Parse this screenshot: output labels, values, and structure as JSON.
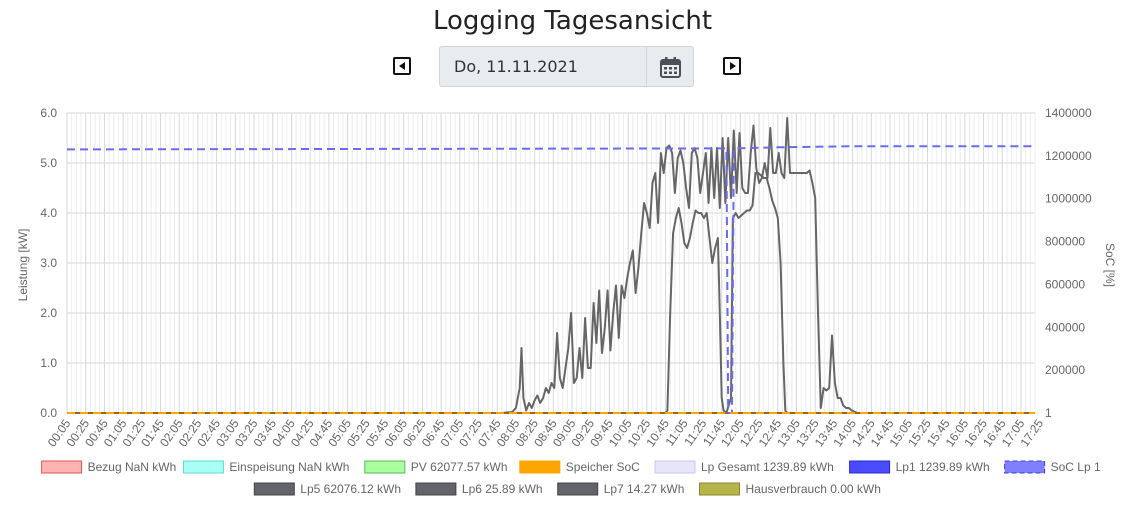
{
  "page": {
    "title": "Logging Tagesansicht",
    "date_value": "Do, 11.11.2021"
  },
  "icons": {
    "prev": "caret-left-square-icon",
    "next": "caret-right-square-icon",
    "calendar": "calendar-icon"
  },
  "chart_data": {
    "type": "line",
    "ylabel_left": "Leistung [kW]",
    "ylabel_right": "SoC [%]",
    "y_left_ticks": [
      "0.0",
      "1.0",
      "2.0",
      "3.0",
      "4.0",
      "5.0",
      "6.0"
    ],
    "y_left_range": [
      0,
      6
    ],
    "y_right_ticks": [
      "1",
      "200000",
      "400000",
      "600000",
      "800000",
      "1000000",
      "1200000",
      "1400000"
    ],
    "y_right_range": [
      1,
      1400000
    ],
    "x_tick_labels": [
      "00:05",
      "00:25",
      "00:45",
      "01:05",
      "01:25",
      "01:45",
      "02:05",
      "02:25",
      "02:45",
      "03:05",
      "03:25",
      "03:45",
      "04:05",
      "04:25",
      "04:45",
      "05:05",
      "05:25",
      "05:45",
      "06:05",
      "06:25",
      "06:45",
      "07:05",
      "07:25",
      "07:45",
      "08:05",
      "08:25",
      "08:45",
      "09:05",
      "09:25",
      "09:45",
      "10:05",
      "10:25",
      "10:45",
      "11:05",
      "11:25",
      "11:45",
      "12:05",
      "12:25",
      "12:45",
      "13:05",
      "13:25",
      "13:45",
      "14:05",
      "14:25",
      "14:45",
      "15:05",
      "15:25",
      "15:45",
      "16:05",
      "16:25",
      "16:45",
      "17:05",
      "17:25"
    ],
    "grid": true,
    "legend_position": "bottom",
    "legend": [
      {
        "label": "Bezug NaN kWh",
        "color": "#ffb3b3",
        "border": "#e05555",
        "dashed": false
      },
      {
        "label": "Einspeisung NaN kWh",
        "color": "#a8fff5",
        "border": "#66d9cc",
        "dashed": false
      },
      {
        "label": "PV 62077.57 kWh",
        "color": "#aaff9e",
        "border": "#55bb55",
        "dashed": false
      },
      {
        "label": "Speicher SoC",
        "color": "#ffa500",
        "border": "#ffa500",
        "dashed": false
      },
      {
        "label": "Lp Gesamt 1239.89 kWh",
        "color": "#e6e6f8",
        "border": "#c8c8ee",
        "dashed": false
      },
      {
        "label": "Lp1 1239.89 kWh",
        "color": "#4a4aff",
        "border": "#2a2ad0",
        "dashed": false
      },
      {
        "label": "SoC Lp 1",
        "color": "#8080ff",
        "border": "#4040cc",
        "dashed": true
      },
      {
        "label": "Lp5 62076.12 kWh",
        "color": "#63636a",
        "border": "#444",
        "dashed": false
      },
      {
        "label": "Lp6 25.89 kWh",
        "color": "#63636a",
        "border": "#444",
        "dashed": false
      },
      {
        "label": "Lp7 14.27 kWh",
        "color": "#63636a",
        "border": "#444",
        "dashed": false
      },
      {
        "label": "Hausverbrauch 0.00 kWh",
        "color": "#b5b34a",
        "border": "#8a8830",
        "dashed": false
      }
    ],
    "series": [
      {
        "name": "Lp5 62076.12 kWh",
        "axis": "left",
        "color": "#666666",
        "points": [
          [
            0,
            0
          ],
          [
            465,
            0
          ],
          [
            476,
            0.02
          ],
          [
            480,
            0.1
          ],
          [
            484,
            0.5
          ],
          [
            486,
            1.3
          ],
          [
            488,
            0.3
          ],
          [
            491,
            0.05
          ],
          [
            494,
            0.2
          ],
          [
            497,
            0.1
          ],
          [
            500,
            0.25
          ],
          [
            503,
            0.35
          ],
          [
            506,
            0.2
          ],
          [
            509,
            0.3
          ],
          [
            512,
            0.5
          ],
          [
            515,
            0.4
          ],
          [
            518,
            0.6
          ],
          [
            521,
            0.5
          ],
          [
            524,
            1.6
          ],
          [
            527,
            0.7
          ],
          [
            530,
            0.5
          ],
          [
            533,
            0.9
          ],
          [
            536,
            1.3
          ],
          [
            539,
            2.0
          ],
          [
            542,
            0.6
          ],
          [
            545,
            0.7
          ],
          [
            548,
            1.3
          ],
          [
            551,
            0.7
          ],
          [
            554,
            1.9
          ],
          [
            557,
            0.9
          ],
          [
            560,
            0.9
          ],
          [
            563,
            2.2
          ],
          [
            566,
            1.4
          ],
          [
            569,
            2.45
          ],
          [
            572,
            1.2
          ],
          [
            575,
            1.7
          ],
          [
            578,
            2.45
          ],
          [
            581,
            1.25
          ],
          [
            584,
            2.0
          ],
          [
            587,
            2.55
          ],
          [
            590,
            1.5
          ],
          [
            593,
            2.55
          ],
          [
            596,
            2.3
          ],
          [
            599,
            2.7
          ],
          [
            602,
            3.0
          ],
          [
            605,
            3.25
          ],
          [
            608,
            2.4
          ],
          [
            611,
            2.9
          ],
          [
            614,
            3.6
          ],
          [
            617,
            4.2
          ],
          [
            620,
            4.0
          ],
          [
            623,
            3.7
          ],
          [
            626,
            4.6
          ],
          [
            629,
            4.8
          ],
          [
            632,
            3.8
          ],
          [
            635,
            5.2
          ],
          [
            638,
            4.8
          ],
          [
            641,
            5.3
          ],
          [
            644,
            5.35
          ],
          [
            647,
            5.2
          ],
          [
            650,
            4.4
          ],
          [
            653,
            5.1
          ],
          [
            656,
            5.25
          ],
          [
            659,
            5.0
          ],
          [
            662,
            4.5
          ],
          [
            665,
            4.1
          ],
          [
            668,
            5.2
          ],
          [
            671,
            5.3
          ],
          [
            674,
            5.1
          ],
          [
            677,
            4.4
          ],
          [
            680,
            4.8
          ],
          [
            683,
            5.2
          ],
          [
            686,
            4.2
          ],
          [
            689,
            5.3
          ],
          [
            692,
            4.3
          ],
          [
            695,
            5.3
          ],
          [
            698,
            4.1
          ],
          [
            701,
            5.5
          ],
          [
            704,
            4.2
          ],
          [
            707,
            5.5
          ],
          [
            710,
            4.3
          ],
          [
            713,
            5.65
          ],
          [
            716,
            4.4
          ],
          [
            719,
            5.6
          ],
          [
            722,
            4.5
          ],
          [
            725,
            4.4
          ],
          [
            728,
            4.4
          ],
          [
            731,
            5.2
          ],
          [
            734,
            5.75
          ],
          [
            737,
            4.9
          ],
          [
            740,
            4.6
          ],
          [
            743,
            4.7
          ],
          [
            746,
            5.0
          ],
          [
            749,
            4.7
          ],
          [
            752,
            5.7
          ],
          [
            755,
            4.8
          ],
          [
            758,
            4.8
          ],
          [
            761,
            5.2
          ],
          [
            764,
            4.8
          ],
          [
            767,
            4.7
          ],
          [
            770,
            5.9
          ],
          [
            773,
            4.8
          ],
          [
            776,
            4.8
          ],
          [
            779,
            4.8
          ],
          [
            782,
            4.8
          ],
          [
            785,
            4.8
          ],
          [
            788,
            4.8
          ],
          [
            791,
            4.8
          ],
          [
            794,
            4.85
          ],
          [
            797,
            4.6
          ],
          [
            800,
            4.3
          ],
          [
            803,
            2.0
          ],
          [
            806,
            0.1
          ],
          [
            809,
            0.5
          ],
          [
            812,
            0.45
          ],
          [
            815,
            0.5
          ],
          [
            818,
            1.55
          ],
          [
            821,
            0.6
          ],
          [
            824,
            0.3
          ],
          [
            827,
            0.3
          ],
          [
            830,
            0.15
          ],
          [
            833,
            0.1
          ],
          [
            836,
            0.1
          ],
          [
            839,
            0.05
          ],
          [
            845,
            0
          ],
          [
            1035,
            0
          ]
        ]
      },
      {
        "name": "Lp6 25.89 kWh",
        "axis": "left",
        "color": "#666666",
        "points": [
          [
            0,
            0
          ],
          [
            640,
            0
          ],
          [
            642,
            0.05
          ],
          [
            645,
            2.0
          ],
          [
            648,
            3.6
          ],
          [
            651,
            3.9
          ],
          [
            654,
            4.1
          ],
          [
            657,
            3.8
          ],
          [
            660,
            3.4
          ],
          [
            663,
            3.3
          ],
          [
            666,
            3.5
          ],
          [
            669,
            3.8
          ],
          [
            672,
            4.05
          ],
          [
            675,
            4.0
          ],
          [
            678,
            4.0
          ],
          [
            681,
            3.9
          ],
          [
            684,
            4.0
          ],
          [
            687,
            3.5
          ],
          [
            690,
            3.0
          ],
          [
            693,
            3.3
          ],
          [
            696,
            3.5
          ],
          [
            698,
            2.0
          ],
          [
            700,
            0.3
          ],
          [
            702,
            0.05
          ],
          [
            705,
            0
          ],
          [
            710,
            0.3
          ],
          [
            712,
            3.9
          ],
          [
            715,
            4.0
          ],
          [
            718,
            3.9
          ],
          [
            721,
            3.95
          ],
          [
            724,
            4.0
          ],
          [
            727,
            4.05
          ],
          [
            730,
            4.05
          ],
          [
            733,
            4.15
          ],
          [
            736,
            4.8
          ],
          [
            739,
            4.8
          ],
          [
            742,
            4.75
          ],
          [
            745,
            4.7
          ],
          [
            748,
            4.7
          ],
          [
            751,
            4.5
          ],
          [
            754,
            4.25
          ],
          [
            757,
            4.1
          ],
          [
            760,
            3.9
          ],
          [
            763,
            3.0
          ],
          [
            766,
            1.0
          ],
          [
            768,
            0.05
          ],
          [
            770,
            0
          ],
          [
            1035,
            0
          ]
        ]
      },
      {
        "name": "Lp7 14.27 kWh",
        "axis": "left",
        "color": "#555555",
        "points": [
          [
            0,
            0
          ],
          [
            1035,
            0
          ]
        ]
      },
      {
        "name": "Hausverbrauch 0.00 kWh",
        "axis": "left",
        "color": "#8b6a2a",
        "points": [
          [
            0,
            0
          ],
          [
            1035,
            0
          ]
        ]
      },
      {
        "name": "SoC Lp 1",
        "axis": "right",
        "color": "#6b6bef",
        "dashed": true,
        "points": [
          [
            0,
            1230000
          ],
          [
            705,
            1235000
          ],
          [
            707,
            1
          ],
          [
            711,
            1
          ],
          [
            713,
            1235000
          ],
          [
            760,
            1240000
          ],
          [
            845,
            1245000
          ],
          [
            1035,
            1245000
          ]
        ]
      },
      {
        "name": "Speicher SoC",
        "axis": "right",
        "color": "#ffa500",
        "dashed": true,
        "points": [
          [
            0,
            1
          ],
          [
            700,
            1
          ],
          [
            708,
            1
          ],
          [
            710,
            1
          ],
          [
            712,
            1
          ],
          [
            1035,
            1
          ]
        ]
      }
    ]
  }
}
